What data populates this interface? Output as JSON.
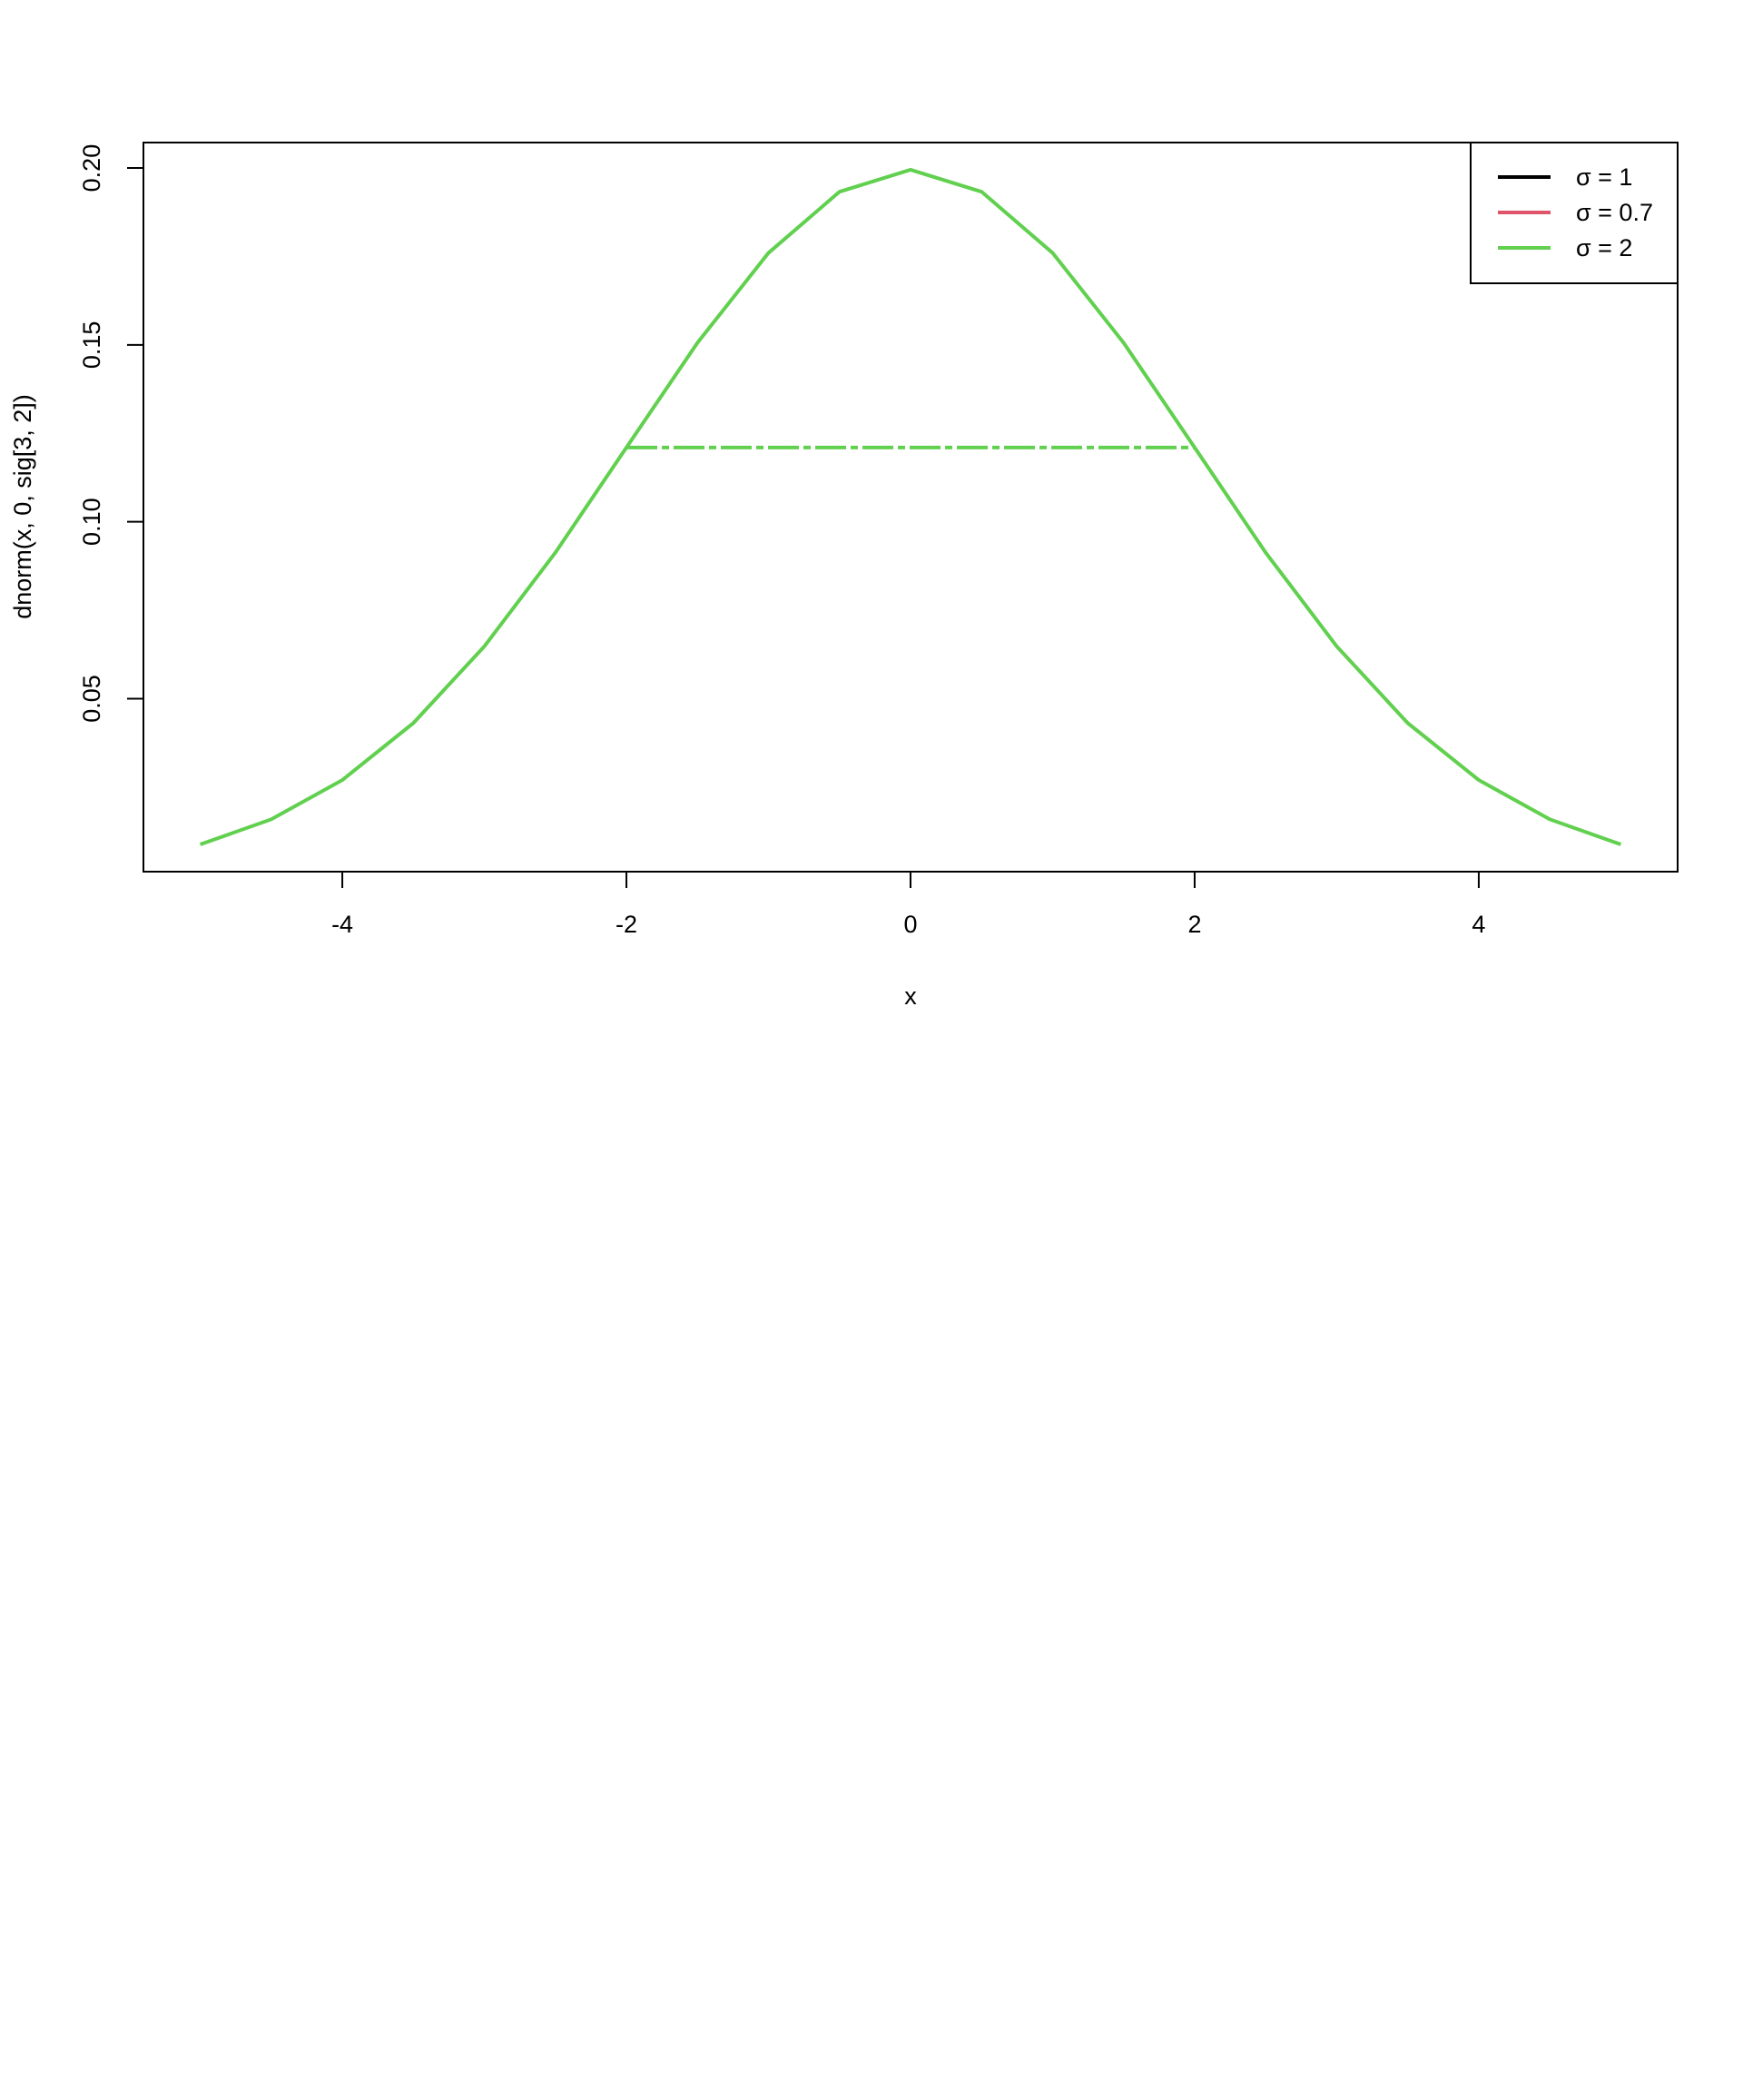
{
  "chart_data": {
    "type": "line",
    "xlabel": "x",
    "ylabel": "dnorm(x, 0, sig[3, 2])",
    "series": [
      {
        "name": "σ = 2",
        "color": "#61D04F",
        "x": [
          -5,
          -4.5,
          -4,
          -3.5,
          -3,
          -2.5,
          -2,
          -1.5,
          -1,
          -0.5,
          0,
          0.5,
          1,
          1.5,
          2,
          2.5,
          3,
          3.5,
          4,
          4.5,
          5
        ],
        "values": [
          0.0088,
          0.0159,
          0.027,
          0.0431,
          0.0648,
          0.0913,
          0.121,
          0.1506,
          0.176,
          0.1933,
          0.1995,
          0.1933,
          0.176,
          0.1506,
          0.121,
          0.0913,
          0.0648,
          0.0431,
          0.027,
          0.0159,
          0.0088
        ]
      }
    ],
    "segment": {
      "x0": -2,
      "x1": 2,
      "y": 0.121,
      "color": "#61D04F"
    },
    "legend": [
      {
        "label": "σ = 1",
        "color": "#000000"
      },
      {
        "label": "σ = 0.7",
        "color": "#DF536B"
      },
      {
        "label": "σ = 2",
        "color": "#61D04F"
      }
    ],
    "legend_position": "top-right",
    "xlim": [
      -5.4,
      5.4
    ],
    "xticks": [
      -4,
      -2,
      0,
      2,
      4
    ],
    "ylim": [
      0.0011,
      0.2072
    ],
    "yticks": [
      0.05,
      {
        "value": 0.1,
        "label": "0.10"
      },
      0.15,
      {
        "value": 0.2,
        "label": "0.20"
      }
    ]
  }
}
